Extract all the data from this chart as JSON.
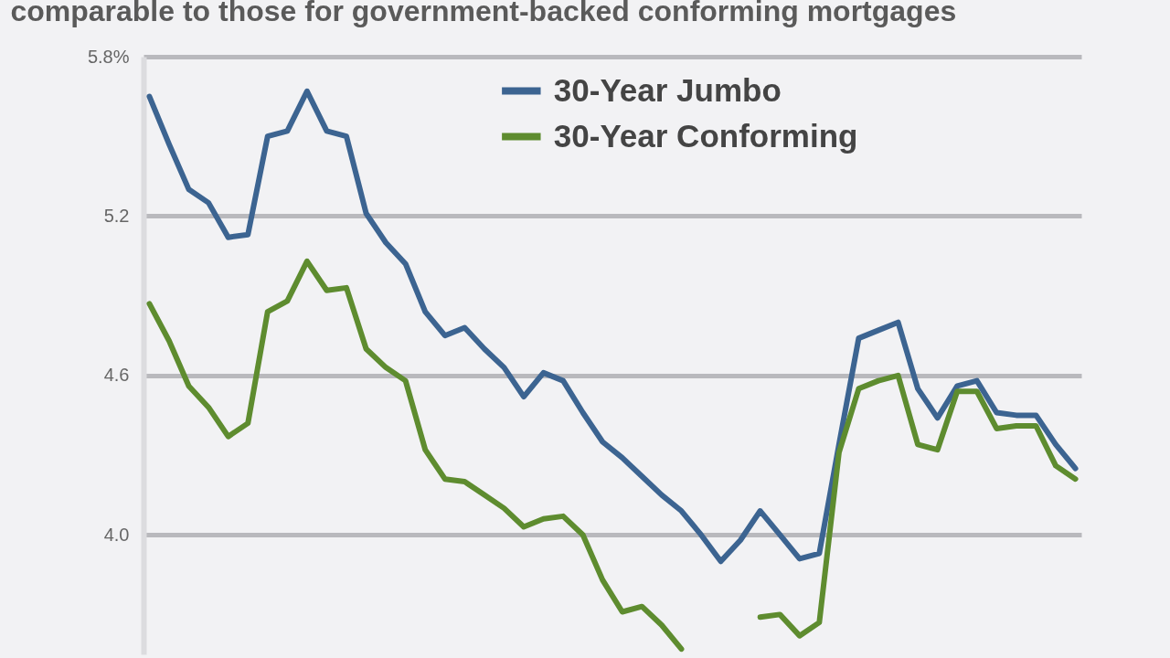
{
  "chart_data": {
    "type": "line",
    "subtitle": "comparable to those for government-backed conforming mortgages",
    "categories": [
      null,
      null,
      null,
      null,
      null,
      null,
      null,
      null,
      null,
      null,
      null,
      null,
      null,
      null,
      null,
      null,
      null,
      null,
      null,
      null,
      null,
      null,
      null,
      null,
      null,
      null,
      null,
      null,
      null,
      null,
      null,
      null,
      null,
      null,
      null,
      null,
      null,
      null,
      null,
      null,
      null,
      null,
      null,
      null,
      null,
      null,
      null,
      null
    ],
    "series": [
      {
        "name": "30-Year Jumbo",
        "color": "#3c6491",
        "values": [
          5.65,
          5.47,
          5.3,
          5.25,
          5.12,
          5.13,
          5.5,
          5.52,
          5.67,
          5.52,
          5.5,
          5.21,
          5.1,
          5.02,
          4.84,
          4.75,
          4.78,
          4.7,
          4.63,
          4.52,
          4.61,
          4.58,
          4.46,
          4.35,
          4.29,
          4.22,
          4.15,
          4.09,
          4.0,
          3.9,
          3.98,
          4.09,
          4.0,
          3.91,
          3.93,
          4.34,
          4.74,
          4.77,
          4.8,
          4.55,
          4.44,
          4.56,
          4.58,
          4.46,
          4.45,
          4.45,
          4.34,
          4.25
        ]
      },
      {
        "name": "30-Year Conforming",
        "color": "#5e8c2f",
        "values": [
          4.87,
          4.73,
          4.56,
          4.48,
          4.37,
          4.42,
          4.84,
          4.88,
          5.03,
          4.92,
          4.93,
          4.7,
          4.63,
          4.58,
          4.32,
          4.21,
          4.2,
          4.15,
          4.1,
          4.03,
          4.06,
          4.07,
          4.0,
          3.83,
          3.71,
          3.73,
          3.66,
          3.57,
          null,
          null,
          null,
          3.69,
          3.7,
          3.62,
          3.67,
          4.31,
          4.55,
          4.58,
          4.6,
          4.34,
          4.32,
          4.54,
          4.54,
          4.4,
          4.41,
          4.41,
          4.26,
          4.21
        ]
      }
    ],
    "ylim": [
      3.55,
      5.8
    ],
    "yticks": [
      {
        "value": 5.8,
        "label": "5.8%"
      },
      {
        "value": 5.2,
        "label": "5.2"
      },
      {
        "value": 4.6,
        "label": "4.6"
      },
      {
        "value": 4.0,
        "label": "4.0"
      }
    ],
    "grid": "y",
    "legend": "top",
    "tick_labels": "y",
    "line_style": "solid"
  }
}
